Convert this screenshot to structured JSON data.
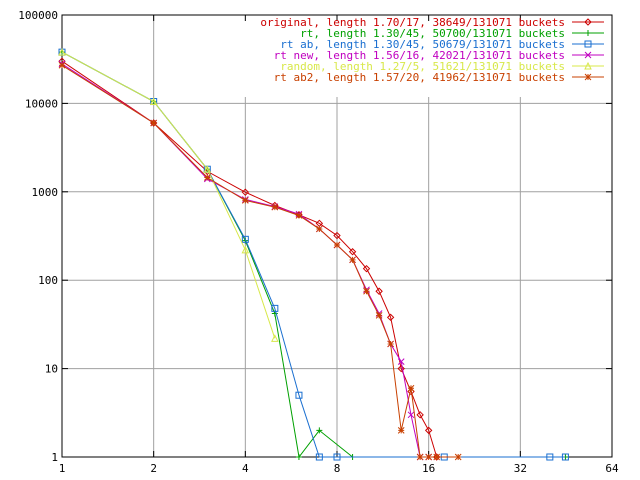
{
  "chart_data": {
    "type": "line",
    "x_scale": "log2",
    "y_scale": "log10",
    "xlim": [
      1,
      64
    ],
    "ylim": [
      1,
      100000
    ],
    "xticks": [
      "1",
      "2",
      "4",
      "8",
      "16",
      "32",
      "64"
    ],
    "yticks": [
      "1",
      "10",
      "100",
      "1000",
      "10000",
      "100000"
    ],
    "xlabel": "",
    "ylabel": "",
    "title": "",
    "grid": true,
    "legend_position": "top-right",
    "series": [
      {
        "name": "original, length 1.70/17, 38649/131071 buckets",
        "color": "#cc0000",
        "marker": "diamond",
        "points": [
          [
            1,
            30000
          ],
          [
            2,
            6000
          ],
          [
            3,
            1700
          ],
          [
            4,
            990
          ],
          [
            5,
            700
          ],
          [
            6,
            550
          ],
          [
            7,
            440
          ],
          [
            8,
            320
          ],
          [
            9,
            210
          ],
          [
            10,
            135
          ],
          [
            11,
            75
          ],
          [
            12,
            38
          ],
          [
            13,
            10
          ],
          [
            14,
            5.5
          ],
          [
            15,
            3
          ],
          [
            16,
            2
          ],
          [
            17,
            1
          ]
        ]
      },
      {
        "name": "rt, length 1.30/45, 50700/131071 buckets",
        "color": "#00a000",
        "marker": "plus",
        "points": [
          [
            1,
            38000
          ],
          [
            2,
            10500
          ],
          [
            3,
            1800
          ],
          [
            4,
            280
          ],
          [
            5,
            42
          ],
          [
            6,
            1
          ],
          [
            7,
            2
          ],
          [
            9,
            1
          ],
          [
            45,
            1
          ]
        ]
      },
      {
        "name": "rt ab, length 1.30/45, 50679/131071 buckets",
        "color": "#1a6fd0",
        "marker": "square",
        "points": [
          [
            1,
            38000
          ],
          [
            2,
            10500
          ],
          [
            3,
            1800
          ],
          [
            4,
            290
          ],
          [
            5,
            48
          ],
          [
            6,
            5
          ],
          [
            7,
            1
          ],
          [
            8,
            1
          ],
          [
            18,
            1
          ],
          [
            40,
            1
          ],
          [
            45,
            1
          ]
        ]
      },
      {
        "name": "rt new, length 1.56/16, 42021/131071 buckets",
        "color": "#c000c0",
        "marker": "cross",
        "points": [
          [
            1,
            28000
          ],
          [
            2,
            6000
          ],
          [
            3,
            1400
          ],
          [
            4,
            820
          ],
          [
            5,
            680
          ],
          [
            6,
            560
          ],
          [
            7,
            380
          ],
          [
            8,
            250
          ],
          [
            9,
            170
          ],
          [
            10,
            78
          ],
          [
            11,
            42
          ],
          [
            12,
            19
          ],
          [
            13,
            12
          ],
          [
            14,
            3
          ],
          [
            15,
            1
          ],
          [
            16,
            1
          ]
        ]
      },
      {
        "name": "random, length 1.27/5, 51621/131071 buckets",
        "color": "#d8e84a",
        "marker": "triangle",
        "points": [
          [
            1,
            38000
          ],
          [
            2,
            10500
          ],
          [
            3,
            1800
          ],
          [
            4,
            220
          ],
          [
            5,
            22
          ]
        ]
      },
      {
        "name": "rt ab2, length 1.57/20, 41962/131071 buckets",
        "color": "#c84000",
        "marker": "star",
        "points": [
          [
            1,
            27000
          ],
          [
            2,
            6000
          ],
          [
            3,
            1450
          ],
          [
            4,
            800
          ],
          [
            5,
            670
          ],
          [
            6,
            540
          ],
          [
            7,
            380
          ],
          [
            8,
            250
          ],
          [
            9,
            170
          ],
          [
            10,
            75
          ],
          [
            11,
            40
          ],
          [
            12,
            19
          ],
          [
            13,
            2
          ],
          [
            14,
            6
          ],
          [
            15,
            1
          ],
          [
            16,
            1
          ],
          [
            17,
            1
          ],
          [
            20,
            1
          ]
        ]
      }
    ]
  }
}
